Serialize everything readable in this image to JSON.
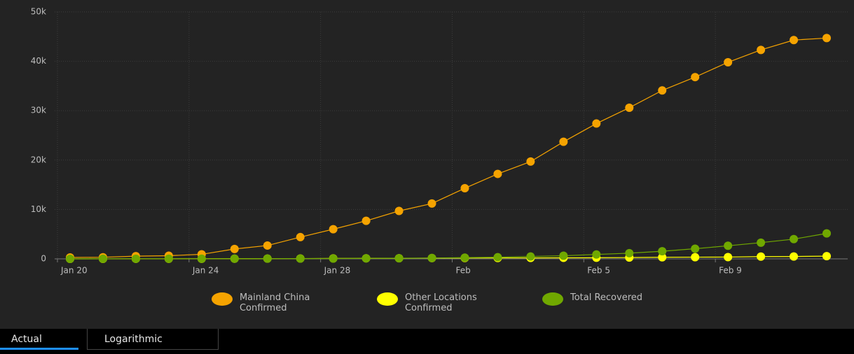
{
  "chart_data": {
    "type": "line",
    "categories": [
      "Jan 20",
      null,
      null,
      null,
      "Jan 24",
      null,
      null,
      null,
      "Jan 28",
      null,
      null,
      null,
      "Feb",
      null,
      null,
      null,
      "Feb 5",
      null,
      null,
      null,
      "Feb 9",
      null,
      null,
      null
    ],
    "series": [
      {
        "name": "Mainland China Confirmed",
        "color": "#f5a300",
        "values": [
          278,
          326,
          547,
          639,
          916,
          2000,
          2700,
          4400,
          6000,
          7700,
          9700,
          11200,
          14300,
          17200,
          19700,
          23700,
          27400,
          30600,
          34100,
          36800,
          39800,
          42300,
          44300,
          44700
        ]
      },
      {
        "name": "Other Locations Confirmed",
        "color": "#ffff00",
        "values": [
          4,
          6,
          8,
          12,
          25,
          40,
          57,
          64,
          87,
          105,
          118,
          153,
          173,
          183,
          188,
          212,
          227,
          265,
          317,
          343,
          361,
          457,
          476,
          548
        ]
      },
      {
        "name": "Total Recovered",
        "color": "#70a800",
        "values": [
          0,
          25,
          25,
          28,
          30,
          36,
          49,
          51,
          60,
          103,
          124,
          171,
          243,
          328,
          475,
          632,
          892,
          1153,
          1540,
          2050,
          2649,
          3281,
          3996,
          5150
        ]
      }
    ],
    "ylim": [
      0,
      50000
    ],
    "yticks": [
      0,
      {
        "value": 10000,
        "label": "10k"
      },
      {
        "value": 20000,
        "label": "20k"
      },
      {
        "value": 30000,
        "label": "30k"
      },
      {
        "value": 40000,
        "label": "40k"
      },
      {
        "value": 50000,
        "label": "50k"
      }
    ],
    "grid": true
  },
  "tabs": [
    "Actual",
    "Logarithmic"
  ]
}
